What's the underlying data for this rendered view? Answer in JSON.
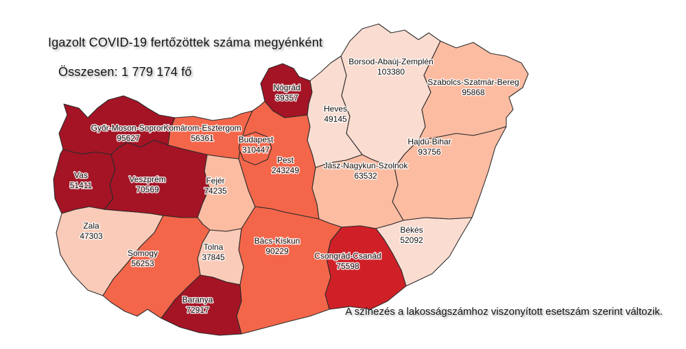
{
  "header": {
    "title": "Igazolt COVID-19 fertőzöttek száma megyénként",
    "subtitle": "Összesen: 1 779 174 fő"
  },
  "footnote": "A színezés a lakosságszámhoz viszonyított esetszám szerint változik.",
  "map": {
    "colors": {
      "dark_red": "#a41425",
      "red": "#d02027",
      "orange": "#f4664a",
      "salmon": "#fbbca2",
      "pink": "#f9cbb8",
      "pale": "#fadcd1",
      "border": "#2b2b2b"
    },
    "counties": [
      {
        "id": "gyor",
        "name": "Győr-Moson-Sopron",
        "value": "95627",
        "color": "dark_red"
      },
      {
        "id": "vas",
        "name": "Vas",
        "value": "51411",
        "color": "dark_red"
      },
      {
        "id": "zala",
        "name": "Zala",
        "value": "47303",
        "color": "pink"
      },
      {
        "id": "veszprem",
        "name": "Veszprém",
        "value": "70569",
        "color": "dark_red"
      },
      {
        "id": "somogy",
        "name": "Somogy",
        "value": "56253",
        "color": "orange"
      },
      {
        "id": "baranya",
        "name": "Baranya",
        "value": "72917",
        "color": "dark_red"
      },
      {
        "id": "tolna",
        "name": "Tolna",
        "value": "37845",
        "color": "pink"
      },
      {
        "id": "fejer",
        "name": "Fejér",
        "value": "74235",
        "color": "salmon"
      },
      {
        "id": "komarom",
        "name": "Komárom-Esztergom",
        "value": "56361",
        "color": "orange"
      },
      {
        "id": "pest",
        "name": "Pest",
        "value": "243249",
        "color": "orange"
      },
      {
        "id": "budapest",
        "name": "Budapest",
        "value": "310447",
        "color": "orange"
      },
      {
        "id": "nograd",
        "name": "Nógrád",
        "value": "39357",
        "color": "dark_red"
      },
      {
        "id": "heves",
        "name": "Heves",
        "value": "49145",
        "color": "pale"
      },
      {
        "id": "borsod",
        "name": "Borsod-Abaúj-Zemplén",
        "value": "103380",
        "color": "pale"
      },
      {
        "id": "szabolcs",
        "name": "Szabolcs-Szatmár-Bereg",
        "value": "95868",
        "color": "salmon"
      },
      {
        "id": "hajdu",
        "name": "Hajdú-Bihar",
        "value": "93756",
        "color": "salmon"
      },
      {
        "id": "jasz",
        "name": "Jász-Nagykun-Szolnok",
        "value": "63532",
        "color": "salmon"
      },
      {
        "id": "bekes",
        "name": "Békés",
        "value": "52092",
        "color": "pale"
      },
      {
        "id": "csongrad",
        "name": "Csongrád-Csanád",
        "value": "75598",
        "color": "red"
      },
      {
        "id": "bacs",
        "name": "Bács-Kiskun",
        "value": "90229",
        "color": "orange"
      }
    ]
  }
}
